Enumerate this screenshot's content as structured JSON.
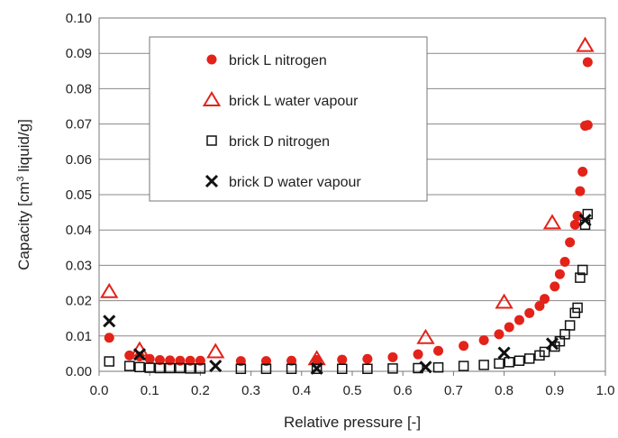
{
  "chart_data": {
    "type": "scatter",
    "xlabel": "Relative pressure [-]",
    "ylabel_parts": [
      "Capacity [cm",
      "3",
      " liquid/g]"
    ],
    "xlim": [
      0.0,
      1.0
    ],
    "ylim": [
      0.0,
      0.1
    ],
    "x_ticks": [
      "0.0",
      "0.1",
      "0.2",
      "0.3",
      "0.4",
      "0.5",
      "0.6",
      "0.7",
      "0.8",
      "0.9",
      "1.0"
    ],
    "y_ticks": [
      "0.00",
      "0.01",
      "0.02",
      "0.03",
      "0.04",
      "0.05",
      "0.06",
      "0.07",
      "0.08",
      "0.09",
      "0.10"
    ],
    "grid": "horizontal",
    "legend_position": "top-left",
    "colors": {
      "red": "#e32219",
      "black": "#111111",
      "grid": "#888888"
    },
    "series": [
      {
        "name": "brick L nitrogen",
        "marker": "filled-circle",
        "color": "#e32219",
        "points": [
          [
            0.02,
            0.0095
          ],
          [
            0.06,
            0.0045
          ],
          [
            0.08,
            0.0042
          ],
          [
            0.1,
            0.0035
          ],
          [
            0.12,
            0.0032
          ],
          [
            0.14,
            0.0031
          ],
          [
            0.16,
            0.003
          ],
          [
            0.18,
            0.003
          ],
          [
            0.2,
            0.003
          ],
          [
            0.28,
            0.0029
          ],
          [
            0.33,
            0.0029
          ],
          [
            0.38,
            0.003
          ],
          [
            0.43,
            0.0032
          ],
          [
            0.48,
            0.0033
          ],
          [
            0.53,
            0.0035
          ],
          [
            0.58,
            0.004
          ],
          [
            0.63,
            0.0048
          ],
          [
            0.67,
            0.0058
          ],
          [
            0.72,
            0.0072
          ],
          [
            0.76,
            0.0088
          ],
          [
            0.79,
            0.0105
          ],
          [
            0.81,
            0.0125
          ],
          [
            0.83,
            0.0145
          ],
          [
            0.85,
            0.0165
          ],
          [
            0.87,
            0.0185
          ],
          [
            0.88,
            0.0205
          ],
          [
            0.9,
            0.024
          ],
          [
            0.91,
            0.0275
          ],
          [
            0.92,
            0.031
          ],
          [
            0.93,
            0.0365
          ],
          [
            0.94,
            0.0415
          ],
          [
            0.945,
            0.044
          ],
          [
            0.95,
            0.051
          ],
          [
            0.955,
            0.0565
          ],
          [
            0.96,
            0.0695
          ],
          [
            0.965,
            0.0697
          ],
          [
            0.965,
            0.0875
          ]
        ]
      },
      {
        "name": "brick L water vapour",
        "marker": "open-triangle",
        "color": "#e32219",
        "points": [
          [
            0.02,
            0.0225
          ],
          [
            0.08,
            0.006
          ],
          [
            0.23,
            0.0055
          ],
          [
            0.43,
            0.0035
          ],
          [
            0.645,
            0.0095
          ],
          [
            0.8,
            0.0195
          ],
          [
            0.895,
            0.042
          ],
          [
            0.96,
            0.0922
          ]
        ]
      },
      {
        "name": "brick D nitrogen",
        "marker": "open-square",
        "color": "#111111",
        "points": [
          [
            0.02,
            0.0028
          ],
          [
            0.06,
            0.0015
          ],
          [
            0.08,
            0.0012
          ],
          [
            0.1,
            0.001
          ],
          [
            0.12,
            0.0009
          ],
          [
            0.14,
            0.0009
          ],
          [
            0.16,
            0.0009
          ],
          [
            0.18,
            0.0008
          ],
          [
            0.2,
            0.0008
          ],
          [
            0.28,
            0.0007
          ],
          [
            0.33,
            0.0007
          ],
          [
            0.38,
            0.0007
          ],
          [
            0.43,
            0.0007
          ],
          [
            0.48,
            0.0007
          ],
          [
            0.53,
            0.0007
          ],
          [
            0.58,
            0.0008
          ],
          [
            0.63,
            0.0009
          ],
          [
            0.67,
            0.0011
          ],
          [
            0.72,
            0.0015
          ],
          [
            0.76,
            0.0018
          ],
          [
            0.79,
            0.0022
          ],
          [
            0.81,
            0.0026
          ],
          [
            0.83,
            0.003
          ],
          [
            0.85,
            0.0036
          ],
          [
            0.87,
            0.0045
          ],
          [
            0.88,
            0.0055
          ],
          [
            0.9,
            0.007
          ],
          [
            0.91,
            0.0085
          ],
          [
            0.92,
            0.0105
          ],
          [
            0.93,
            0.013
          ],
          [
            0.94,
            0.0165
          ],
          [
            0.945,
            0.018
          ],
          [
            0.95,
            0.0265
          ],
          [
            0.955,
            0.0287
          ],
          [
            0.96,
            0.0415
          ],
          [
            0.965,
            0.0445
          ]
        ]
      },
      {
        "name": "brick D water vapour",
        "marker": "cross",
        "color": "#111111",
        "points": [
          [
            0.02,
            0.0142
          ],
          [
            0.08,
            0.0048
          ],
          [
            0.23,
            0.0015
          ],
          [
            0.43,
            0.0008
          ],
          [
            0.645,
            0.0012
          ],
          [
            0.8,
            0.0052
          ],
          [
            0.895,
            0.0078
          ],
          [
            0.96,
            0.0428
          ]
        ]
      }
    ]
  }
}
